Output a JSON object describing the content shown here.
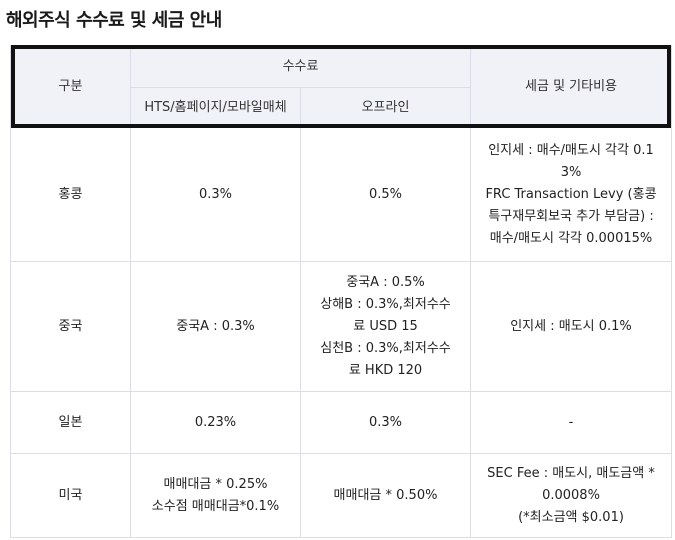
{
  "title": "해외주식 수수료 및 세금 안내",
  "table": {
    "headers": {
      "category": "구분",
      "fee": "수수료",
      "fee_online": "HTS/홈페이지/모바일매체",
      "fee_offline": "오프라인",
      "tax": "세금 및 기타비용"
    },
    "rows": [
      {
        "market": "홍콩",
        "online": [
          "0.3%"
        ],
        "offline": [
          "0.5%"
        ],
        "tax": [
          "인지세 : 매수/매도시 각각 0.1",
          "3%",
          "FRC Transaction Levy (홍콩",
          "특구재무회보국 추가 부담금) :",
          "매수/매도시 각각 0.00015%"
        ]
      },
      {
        "market": "중국",
        "online": [
          "중국A : 0.3%"
        ],
        "offline": [
          "중국A : 0.5%",
          "상해B : 0.3%,최저수수",
          "료 USD 15",
          "심천B : 0.3%,최저수수",
          "료 HKD 120"
        ],
        "tax": [
          "인지세 : 매도시 0.1%"
        ]
      },
      {
        "market": "일본",
        "online": [
          "0.23%"
        ],
        "offline": [
          "0.3%"
        ],
        "tax": [
          "-"
        ]
      },
      {
        "market": "미국",
        "online": [
          "매매대금 * 0.25%",
          "소수점 매매대금*0.1%"
        ],
        "offline": [
          "매매대금 * 0.50%"
        ],
        "tax": [
          "SEC Fee : 매도시, 매도금액 *",
          "0.0008%",
          "(*최소금액 $0.01)"
        ]
      }
    ]
  }
}
